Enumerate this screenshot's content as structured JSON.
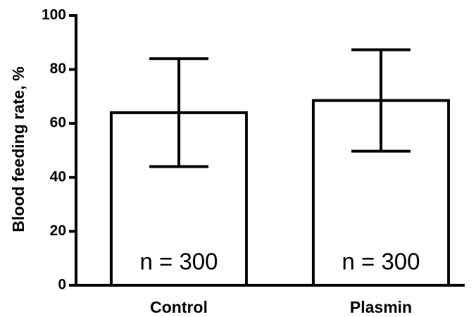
{
  "chart_data": {
    "type": "bar",
    "y_label": "Blood feeding rate, %",
    "categories": [
      "Control",
      "Plasmin"
    ],
    "values": [
      64,
      68.5
    ],
    "errors": [
      20,
      18.8
    ],
    "annotations": [
      "n = 300",
      "n = 300"
    ],
    "color": "#ffffff",
    "ylim": [
      0,
      100
    ],
    "yticks": [
      0,
      20,
      40,
      60,
      80,
      100
    ],
    "grid": false
  }
}
